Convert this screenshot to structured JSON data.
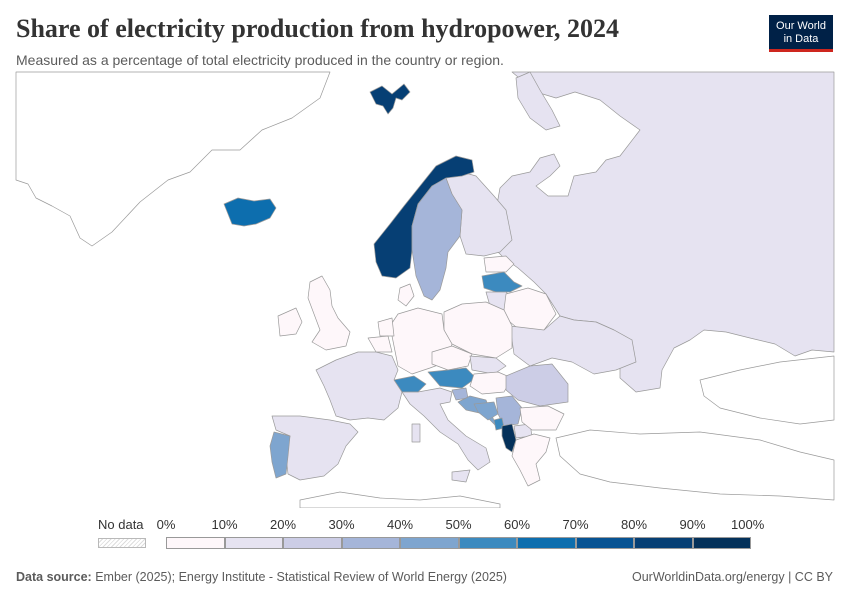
{
  "header": {
    "title": "Share of electricity production from hydropower, 2024",
    "subtitle": "Measured as a percentage of total electricity produced in the country or region."
  },
  "logo": {
    "line1": "Our World",
    "line2": "in Data"
  },
  "legend": {
    "no_data_label": "No data",
    "ticks": [
      "0%",
      "10%",
      "20%",
      "30%",
      "40%",
      "50%",
      "60%",
      "70%",
      "80%",
      "90%",
      "100%"
    ],
    "colors": [
      "#fef7fa",
      "#e6e3f1",
      "#cccde6",
      "#a5b5d9",
      "#7ea5cf",
      "#3c8abf",
      "#0d6eae",
      "#075393",
      "#063f74",
      "#04315a"
    ]
  },
  "footer": {
    "source_label": "Data source:",
    "source_text": "Ember (2025); Energy Institute - Statistical Review of World Energy (2025)",
    "link": "OurWorldinData.org/energy | CC BY"
  },
  "map_data": {
    "regions": [
      {
        "name": "Norway",
        "bin": 9
      },
      {
        "name": "Albania",
        "bin": 9
      },
      {
        "name": "Svalbard",
        "bin": 8
      },
      {
        "name": "Iceland",
        "bin": 6
      },
      {
        "name": "Austria",
        "bin": 5
      },
      {
        "name": "Switzerland",
        "bin": 5
      },
      {
        "name": "Latvia",
        "bin": 5
      },
      {
        "name": "Montenegro",
        "bin": 5
      },
      {
        "name": "Croatia",
        "bin": 4
      },
      {
        "name": "Portugal",
        "bin": 4
      },
      {
        "name": "Bosnia and Herzegovina",
        "bin": 4
      },
      {
        "name": "Sweden",
        "bin": 3
      },
      {
        "name": "Slovenia",
        "bin": 3
      },
      {
        "name": "Serbia",
        "bin": 3
      },
      {
        "name": "Romania",
        "bin": 2
      },
      {
        "name": "Italy",
        "bin": 1
      },
      {
        "name": "Spain",
        "bin": 1
      },
      {
        "name": "France",
        "bin": 1
      },
      {
        "name": "Finland",
        "bin": 1
      },
      {
        "name": "Russia",
        "bin": 1
      },
      {
        "name": "Ukraine",
        "bin": 1
      },
      {
        "name": "Slovakia",
        "bin": 1
      },
      {
        "name": "North Macedonia",
        "bin": 1
      },
      {
        "name": "Greece",
        "bin": 1
      },
      {
        "name": "Lithuania",
        "bin": 1
      },
      {
        "name": "Germany",
        "bin": 0
      },
      {
        "name": "Poland",
        "bin": 0
      },
      {
        "name": "United Kingdom",
        "bin": 0
      },
      {
        "name": "Ireland",
        "bin": 0
      },
      {
        "name": "Belgium",
        "bin": 0
      },
      {
        "name": "Netherlands",
        "bin": 0
      },
      {
        "name": "Denmark",
        "bin": 0
      },
      {
        "name": "Czechia",
        "bin": 0
      },
      {
        "name": "Hungary",
        "bin": 0
      },
      {
        "name": "Bulgaria",
        "bin": 0
      },
      {
        "name": "Estonia",
        "bin": 0
      },
      {
        "name": "Belarus",
        "bin": 0
      }
    ]
  }
}
